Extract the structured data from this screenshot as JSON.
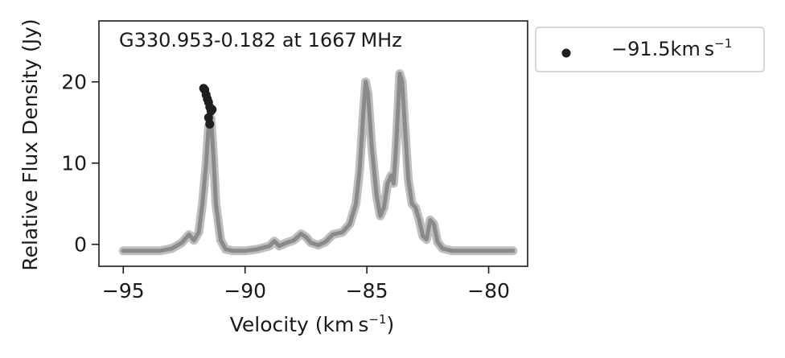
{
  "chart_data": {
    "type": "scatter",
    "title": "G330.953-0.182 at 1667 MHz",
    "xlabel": "Velocity (km s",
    "xlabel_sup": "−1",
    "xlabel_suffix": ")",
    "ylabel": "Relative Flux Density (Jy)",
    "xlim": [
      -96.0,
      -78.4
    ],
    "ylim": [
      -2.7,
      27.5
    ],
    "x_ticks": [
      -95,
      -90,
      -85,
      -80
    ],
    "x_tick_labels": [
      "−95",
      "−90",
      "−85",
      "−80"
    ],
    "y_ticks": [
      0,
      10,
      20
    ],
    "y_tick_labels": [
      "0",
      "10",
      "20"
    ],
    "grid": false,
    "legend_placement": "outside upper right",
    "colors": {
      "spectrum": "#8a8a8a",
      "marker": "#1f1f1f",
      "axes": "#1a1a1a"
    },
    "spectrum": {
      "x": [
        -95.0,
        -93.5,
        -93.0,
        -92.6,
        -92.3,
        -92.1,
        -91.9,
        -91.75,
        -91.6,
        -91.5,
        -91.4,
        -91.3,
        -91.2,
        -91.0,
        -90.8,
        -90.5,
        -90.0,
        -89.5,
        -89.0,
        -88.8,
        -88.6,
        -88.3,
        -88.0,
        -87.7,
        -87.5,
        -87.3,
        -87.0,
        -86.7,
        -86.4,
        -86.0,
        -85.7,
        -85.45,
        -85.3,
        -85.15,
        -85.05,
        -84.95,
        -84.8,
        -84.6,
        -84.45,
        -84.3,
        -84.15,
        -84.0,
        -83.9,
        -83.8,
        -83.7,
        -83.65,
        -83.55,
        -83.45,
        -83.3,
        -83.15,
        -83.0,
        -82.85,
        -82.7,
        -82.55,
        -82.4,
        -82.25,
        -82.1,
        -81.9,
        -81.5,
        -80.0,
        -79.0
      ],
      "y": [
        -0.8,
        -0.8,
        -0.5,
        0.2,
        1.2,
        0.5,
        1.5,
        5.0,
        10.0,
        14.5,
        15.5,
        11.0,
        5.0,
        0.5,
        -0.6,
        -0.8,
        -0.8,
        -0.6,
        -0.2,
        0.4,
        -0.2,
        0.2,
        0.5,
        1.3,
        0.9,
        0.2,
        -0.1,
        0.3,
        1.2,
        1.5,
        2.5,
        5.0,
        9.0,
        16.0,
        20.0,
        18.5,
        12.0,
        6.0,
        3.5,
        4.5,
        7.5,
        8.5,
        7.5,
        12.0,
        18.0,
        21.0,
        20.0,
        15.0,
        8.0,
        5.0,
        4.5,
        3.0,
        1.0,
        0.6,
        3.0,
        2.5,
        0.3,
        -0.5,
        -0.8,
        -0.8,
        -0.8
      ]
    },
    "series": [
      {
        "name": "−91.5km s",
        "name_sup": "−1",
        "points": [
          {
            "x": -91.7,
            "y": 19.2
          },
          {
            "x": -91.65,
            "y": 19.0
          },
          {
            "x": -91.6,
            "y": 18.4
          },
          {
            "x": -91.55,
            "y": 17.9
          },
          {
            "x": -91.5,
            "y": 17.5
          },
          {
            "x": -91.45,
            "y": 16.9
          },
          {
            "x": -91.4,
            "y": 16.4
          },
          {
            "x": -91.5,
            "y": 15.6
          },
          {
            "x": -91.45,
            "y": 14.8
          },
          {
            "x": -91.35,
            "y": 16.6
          }
        ]
      }
    ]
  }
}
